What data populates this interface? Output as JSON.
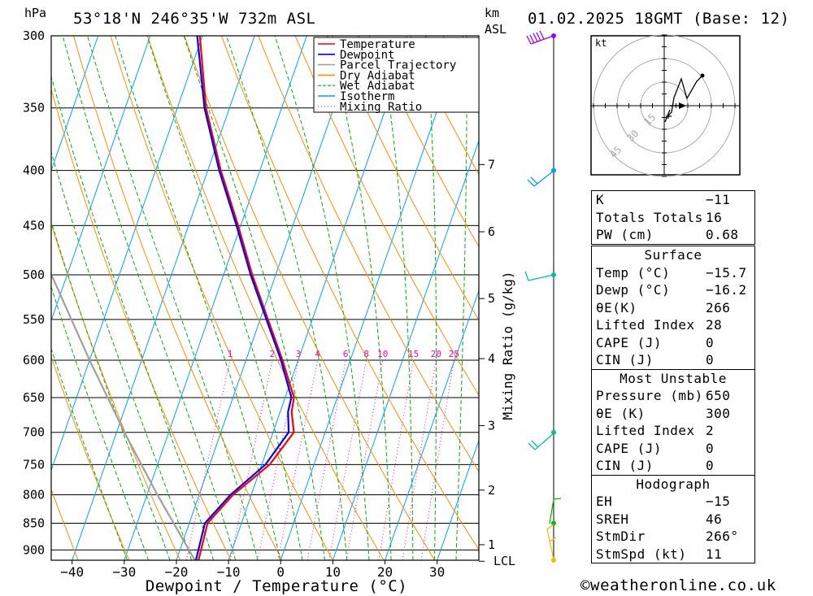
{
  "header": {
    "pressure_unit": "hPa",
    "location": "53°18'N 246°35'W 732m ASL",
    "height_unit_top": "km",
    "height_unit_bottom": "ASL",
    "datetime": "01.02.2025 18GMT (Base: 12)"
  },
  "legend": [
    {
      "label": "Temperature",
      "color": "#ff0000",
      "style": "solid"
    },
    {
      "label": "Dewpoint",
      "color": "#0000ff",
      "style": "solid"
    },
    {
      "label": "Parcel Trajectory",
      "color": "#a0a0a0",
      "style": "solid"
    },
    {
      "label": "Dry Adiabat",
      "color": "#ff8c00",
      "style": "solid"
    },
    {
      "label": "Wet Adiabat",
      "color": "#00b000",
      "style": "dashed"
    },
    {
      "label": "Isotherm",
      "color": "#00a0ff",
      "style": "solid"
    },
    {
      "label": "Mixing Ratio",
      "color": "#ff00aa",
      "style": "dotted"
    }
  ],
  "chart_data": {
    "type": "line",
    "diagram": "skew-T log-p",
    "xlabel": "Dewpoint / Temperature (°C)",
    "ylabel": "hPa",
    "xlim": [
      -44,
      38
    ],
    "ylim": [
      920,
      300
    ],
    "x_ticks": [
      "−40",
      "−30",
      "−20",
      "−10",
      "0",
      "10",
      "20",
      "30"
    ],
    "pressure_ticks": [
      300,
      350,
      400,
      450,
      500,
      550,
      600,
      650,
      700,
      750,
      800,
      850,
      900
    ],
    "height_ticks": [
      {
        "label": "7",
        "p": 395
      },
      {
        "label": "6",
        "p": 456
      },
      {
        "label": "5",
        "p": 526
      },
      {
        "label": "4",
        "p": 598
      },
      {
        "label": "3",
        "p": 690
      },
      {
        "label": "2",
        "p": 792
      },
      {
        "label": "1",
        "p": 890
      },
      {
        "label": "LCL",
        "p": 922
      }
    ],
    "mixing_ratio_label": "Mixing Ratio (g/kg)",
    "mixing_ratio_values": [
      "1",
      "2",
      "3",
      "4",
      "6",
      "8",
      "10",
      "15",
      "20",
      "25"
    ],
    "series": [
      {
        "name": "Temperature",
        "color": "#ff0000",
        "points": [
          [
            925,
            -15.7
          ],
          [
            850,
            -16.5
          ],
          [
            800,
            -13.5
          ],
          [
            750,
            -8.5
          ],
          [
            700,
            -6.0
          ],
          [
            670,
            -7.8
          ],
          [
            650,
            -8.3
          ],
          [
            600,
            -13.0
          ],
          [
            550,
            -18.5
          ],
          [
            500,
            -24.5
          ],
          [
            450,
            -30.5
          ],
          [
            400,
            -37.5
          ],
          [
            350,
            -44.5
          ],
          [
            300,
            -50.5
          ]
        ]
      },
      {
        "name": "Dewpoint",
        "color": "#0000ff",
        "points": [
          [
            925,
            -16.2
          ],
          [
            850,
            -17.0
          ],
          [
            800,
            -14.0
          ],
          [
            750,
            -9.3
          ],
          [
            700,
            -7.0
          ],
          [
            670,
            -8.5
          ],
          [
            650,
            -8.8
          ],
          [
            600,
            -13.3
          ],
          [
            550,
            -18.8
          ],
          [
            500,
            -24.8
          ],
          [
            450,
            -30.8
          ],
          [
            400,
            -37.8
          ],
          [
            350,
            -44.8
          ],
          [
            300,
            -51.0
          ]
        ]
      },
      {
        "name": "Parcel Trajectory",
        "color": "#a0a0a0",
        "points": [
          [
            922,
            -16.3
          ],
          [
            850,
            -23.0
          ],
          [
            800,
            -28.0
          ],
          [
            700,
            -38.5
          ],
          [
            600,
            -50.0
          ],
          [
            500,
            -63.0
          ],
          [
            400,
            -78.0
          ]
        ]
      }
    ]
  },
  "hodograph": {
    "unit": "kt",
    "ring_labels": [
      "15",
      "30",
      "45"
    ]
  },
  "indices": {
    "general": [
      {
        "label": "K",
        "value": "−11"
      },
      {
        "label": "Totals Totals",
        "value": "16"
      },
      {
        "label": "PW (cm)",
        "value": "0.68"
      }
    ],
    "surface": {
      "title": "Surface",
      "rows": [
        {
          "label": "Temp (°C)",
          "value": "−15.7"
        },
        {
          "label": "Dewp (°C)",
          "value": "−16.2"
        },
        {
          "label": "θE(K)",
          "value": "266"
        },
        {
          "label": "Lifted Index",
          "value": "28"
        },
        {
          "label": "CAPE (J)",
          "value": "0"
        },
        {
          "label": "CIN (J)",
          "value": "0"
        }
      ]
    },
    "most_unstable": {
      "title": "Most Unstable",
      "rows": [
        {
          "label": "Pressure (mb)",
          "value": "650"
        },
        {
          "label": "θE (K)",
          "value": "300"
        },
        {
          "label": "Lifted Index",
          "value": "2"
        },
        {
          "label": "CAPE (J)",
          "value": "0"
        },
        {
          "label": "CIN (J)",
          "value": "0"
        }
      ]
    },
    "hodograph": {
      "title": "Hodograph",
      "rows": [
        {
          "label": "EH",
          "value": "−15"
        },
        {
          "label": "SREH",
          "value": "46"
        },
        {
          "label": "StmDir",
          "value": "266°"
        },
        {
          "label": "StmSpd (kt)",
          "value": "11"
        }
      ]
    }
  },
  "credit": "©weatheronline.co.uk"
}
